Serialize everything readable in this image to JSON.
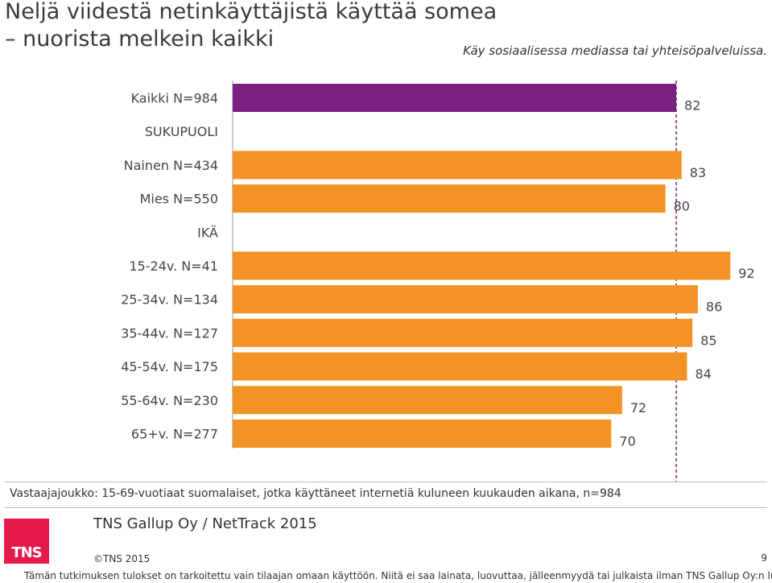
{
  "title_line1": "Neljä viidestä netinkäyttäjistä käyttää somea",
  "title_line2": "– nuorista melkein kaikki",
  "subtitle": "Käy sosiaalisessa mediassa tai yhteisöpalveluissa.",
  "footnote": "Vastaajajoukko: 15-69-vuotiaat suomalaiset, jotka käyttäneet internetiä kuluneen kuukauden aikana, n=984",
  "source": "TNS Gallup Oy / NetTrack 2015",
  "logo_text": "TNS",
  "copyright": "©TNS 2015",
  "page_number": "9",
  "disclaimer": "Tämän tutkimuksen tulokset on tarkoitettu vain tilaajan omaan käyttöön. Niitä ei saa lainata, luovuttaa, jälleenmyydä tai julkaista ilman TNS Gallup Oy:n lupaa",
  "colors": {
    "total": "#7b2281",
    "group": "#f39325",
    "reference_line": "#7b2281",
    "axis": "#999999"
  },
  "chart_data": {
    "type": "bar",
    "orientation": "horizontal",
    "reference_line_value": 82,
    "rows": [
      {
        "label": "Kaikki N=984",
        "value": 82,
        "kind": "total"
      },
      {
        "label": "SUKUPUOLI",
        "value": null,
        "kind": "header"
      },
      {
        "label": "Nainen N=434",
        "value": 83,
        "kind": "group"
      },
      {
        "label": "Mies N=550",
        "value": 80,
        "kind": "group"
      },
      {
        "label": "IKÄ",
        "value": null,
        "kind": "header"
      },
      {
        "label": "15-24v. N=41",
        "value": 92,
        "kind": "group"
      },
      {
        "label": "25-34v. N=134",
        "value": 86,
        "kind": "group"
      },
      {
        "label": "35-44v. N=127",
        "value": 85,
        "kind": "group"
      },
      {
        "label": "45-54v. N=175",
        "value": 84,
        "kind": "group"
      },
      {
        "label": "55-64v. N=230",
        "value": 72,
        "kind": "group"
      },
      {
        "label": "65+v. N=277",
        "value": 70,
        "kind": "group"
      }
    ]
  }
}
